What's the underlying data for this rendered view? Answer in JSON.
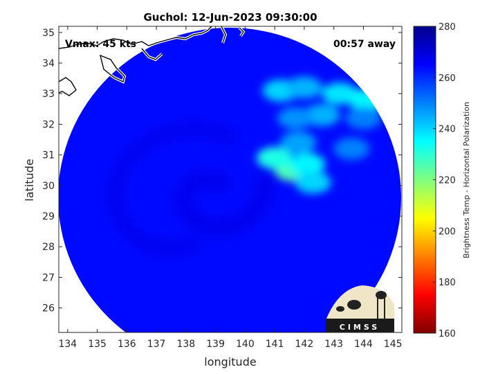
{
  "chart_data": {
    "type": "heatmap",
    "title": "Guchol: 12-Jun-2023 09:30:00",
    "xlabel": "longitude",
    "ylabel": "latitude",
    "xlim": [
      133.7,
      145.3
    ],
    "ylim": [
      25.2,
      35.2
    ],
    "xticks": [
      134,
      135,
      136,
      137,
      138,
      139,
      140,
      141,
      142,
      143,
      144,
      145
    ],
    "yticks": [
      26,
      27,
      28,
      29,
      30,
      31,
      32,
      33,
      34,
      35
    ],
    "annotations": {
      "vmax": "Vmax: 45 kts",
      "time_away": "00:57 away"
    },
    "storm_center": {
      "lon": 139.7,
      "lat": 30.1
    },
    "colorbar": {
      "label": "Brightness Temp - Horizontal Polarization",
      "range": [
        160,
        280
      ],
      "ticks": [
        160,
        180,
        200,
        220,
        240,
        260,
        280
      ],
      "colormap": [
        "#800000",
        "#ff0000",
        "#ff8000",
        "#ffff00",
        "#80ff80",
        "#00ffff",
        "#0080ff",
        "#0000ff",
        "#00008f"
      ]
    },
    "swath": {
      "background_tb": 264,
      "inner_band_tb": 268
    },
    "features": [
      {
        "lon": 141.6,
        "lat": 30.5,
        "tb": 226
      },
      {
        "lon": 141.0,
        "lat": 30.9,
        "tb": 232
      },
      {
        "lon": 142.1,
        "lat": 30.7,
        "tb": 236
      },
      {
        "lon": 142.3,
        "lat": 30.1,
        "tb": 240
      },
      {
        "lon": 141.8,
        "lat": 31.4,
        "tb": 246
      },
      {
        "lon": 142.6,
        "lat": 32.3,
        "tb": 244
      },
      {
        "lon": 141.7,
        "lat": 32.2,
        "tb": 248
      },
      {
        "lon": 141.2,
        "lat": 33.1,
        "tb": 240
      },
      {
        "lon": 142.0,
        "lat": 33.2,
        "tb": 244
      },
      {
        "lon": 143.2,
        "lat": 33.0,
        "tb": 238
      },
      {
        "lon": 144.1,
        "lat": 32.8,
        "tb": 236
      },
      {
        "lon": 143.6,
        "lat": 31.2,
        "tb": 250
      },
      {
        "lon": 144.0,
        "lat": 32.2,
        "tb": 250
      }
    ],
    "logo_text": "CIMSS"
  },
  "colors": {
    "background": "#ffffff",
    "coastline": "#000000",
    "coastline_halo": "#ffffff",
    "axes_edge": "#262626"
  }
}
